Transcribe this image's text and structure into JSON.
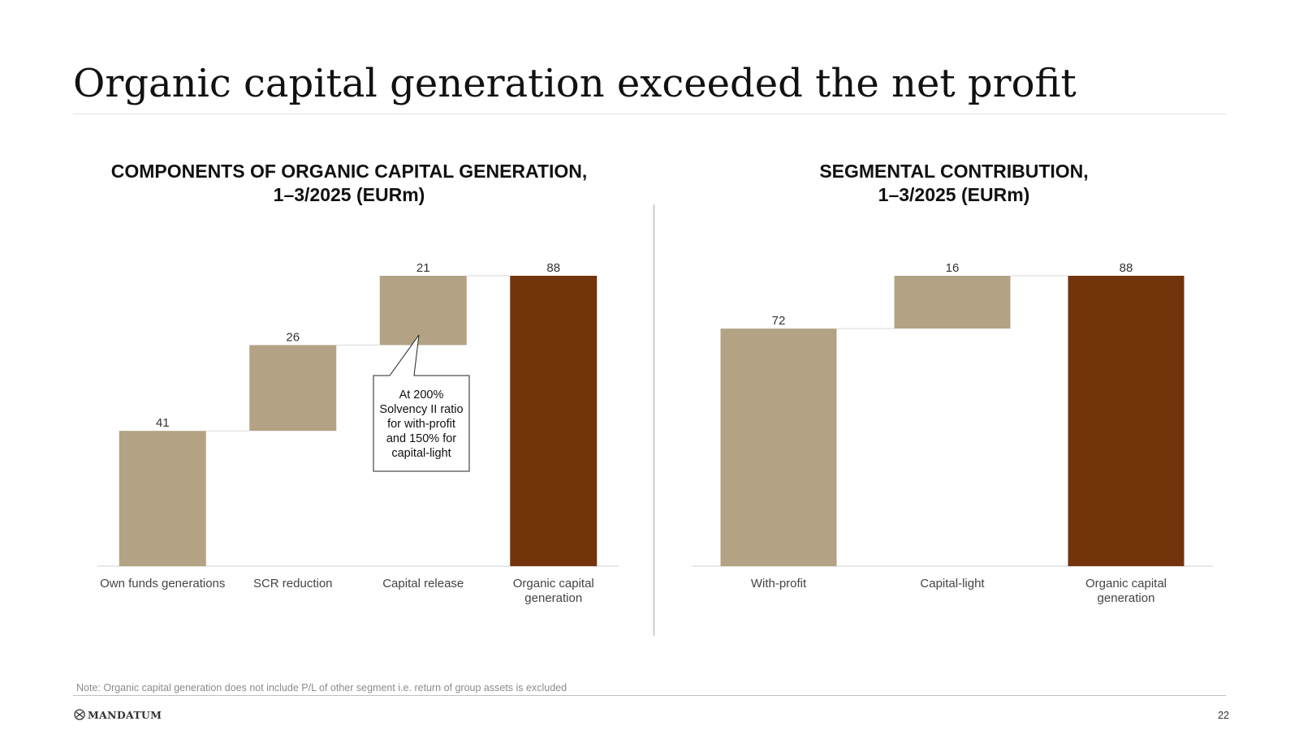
{
  "slide": {
    "title": "Organic capital generation exceeded the net profit",
    "note": "Note: Organic capital generation does not include P/L of other segment i.e. return of group assets is excluded",
    "logo_text": "MANDATUM",
    "logo_icon": "mandatum-mark-icon",
    "page_number": "22"
  },
  "colors": {
    "component_bar": "#b3a384",
    "total_bar": "#73340c",
    "connector": "#d9d9d9",
    "baseline": "#d9d9d9"
  },
  "callout": {
    "text": "At 200%\nSolvency II ratio\nfor with-profit\nand 150% for\ncapital-light"
  },
  "chart_data": [
    {
      "type": "bar",
      "subtype": "waterfall",
      "title_lines": [
        "COMPONENTS OF ORGANIC CAPITAL GENERATION,",
        "1–3/2025 (EURm)"
      ],
      "categories": [
        "Own funds generations",
        "SCR reduction",
        "Capital release",
        "Organic capital\ngeneration"
      ],
      "values": [
        41,
        26,
        21,
        88
      ],
      "labels": [
        "41",
        "26",
        "21",
        "88"
      ],
      "is_total": [
        false,
        false,
        false,
        true
      ],
      "ylim": [
        0,
        88
      ],
      "grid": false,
      "legend": "none"
    },
    {
      "type": "bar",
      "subtype": "waterfall",
      "title_lines": [
        "SEGMENTAL CONTRIBUTION,",
        "1–3/2025 (EURm)"
      ],
      "categories": [
        "With-profit",
        "Capital-light",
        "Organic capital\ngeneration"
      ],
      "values": [
        72,
        16,
        88
      ],
      "labels": [
        "72",
        "16",
        "88"
      ],
      "is_total": [
        false,
        false,
        true
      ],
      "ylim": [
        0,
        88
      ],
      "grid": false,
      "legend": "none"
    }
  ]
}
